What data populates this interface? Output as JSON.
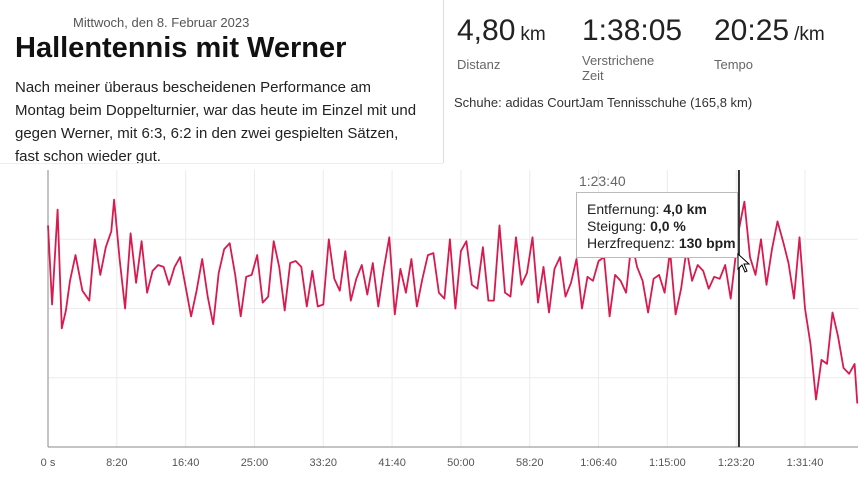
{
  "header": {
    "date": "Mittwoch, den 8. Februar 2023",
    "title": "Hallentennis mit Werner",
    "description": "Nach meiner überaus bescheidenen Performance am Montag beim Doppelturnier, war das heute im Einzel mit und gegen Werner, mit 6:3, 6:2 in den zwei gespielten Sätzen, fast schon wieder gut."
  },
  "stats": {
    "distance": {
      "value": "4,80",
      "unit": "km",
      "label": "Distanz"
    },
    "elapsed": {
      "value": "1:38:05",
      "label": "Verstrichene Zeit"
    },
    "pace": {
      "value": "20:25",
      "unit": "/km",
      "label": "Tempo"
    }
  },
  "shoes": {
    "text": "Schuhe: adidas CourtJam Tennisschuhe (165,8 km)"
  },
  "tooltip": {
    "time": "1:23:40",
    "distance_label": "Entfernung:",
    "distance_value": "4,0 km",
    "grade_label": "Steigung:",
    "grade_value": "0,0 %",
    "hr_label": "Herzfrequenz:",
    "hr_value": "130 bpm"
  },
  "colors": {
    "line": "#d81b4f",
    "cursor": "#333333"
  },
  "chart_data": {
    "type": "line",
    "title": "",
    "xlabel": "",
    "ylabel": "",
    "x_ticks": [
      "0 s",
      "8:20",
      "16:40",
      "25:00",
      "33:20",
      "41:40",
      "50:00",
      "58:20",
      "1:06:40",
      "1:15:00",
      "1:23:20",
      "1:31:40"
    ],
    "x_tick_seconds": [
      0,
      500,
      1000,
      1500,
      2000,
      2500,
      3000,
      3500,
      4000,
      4500,
      5000,
      5500
    ],
    "x_range_seconds": [
      0,
      5885
    ],
    "grid": true,
    "cursor_seconds": 5020,
    "series": [
      {
        "values": [
          [
            0,
            132
          ],
          [
            30,
            92
          ],
          [
            70,
            140
          ],
          [
            100,
            80
          ],
          [
            130,
            89
          ],
          [
            160,
            104
          ],
          [
            200,
            117
          ],
          [
            250,
            99
          ],
          [
            300,
            94
          ],
          [
            340,
            125
          ],
          [
            380,
            107
          ],
          [
            420,
            121
          ],
          [
            460,
            129
          ],
          [
            480,
            145
          ],
          [
            520,
            115
          ],
          [
            560,
            90
          ],
          [
            600,
            128
          ],
          [
            640,
            103
          ],
          [
            680,
            124
          ],
          [
            720,
            98
          ],
          [
            760,
            109
          ],
          [
            800,
            112
          ],
          [
            840,
            111
          ],
          [
            880,
            102
          ],
          [
            920,
            111
          ],
          [
            960,
            116
          ],
          [
            1000,
            101
          ],
          [
            1040,
            86
          ],
          [
            1080,
            99
          ],
          [
            1120,
            115
          ],
          [
            1160,
            96
          ],
          [
            1200,
            82
          ],
          [
            1240,
            108
          ],
          [
            1280,
            120
          ],
          [
            1320,
            123
          ],
          [
            1360,
            107
          ],
          [
            1400,
            86
          ],
          [
            1440,
            106
          ],
          [
            1480,
            107
          ],
          [
            1520,
            117
          ],
          [
            1560,
            93
          ],
          [
            1600,
            96
          ],
          [
            1640,
            124
          ],
          [
            1680,
            111
          ],
          [
            1720,
            89
          ],
          [
            1760,
            113
          ],
          [
            1800,
            114
          ],
          [
            1840,
            111
          ],
          [
            1880,
            91
          ],
          [
            1920,
            109
          ],
          [
            1960,
            91
          ],
          [
            2000,
            92
          ],
          [
            2040,
            125
          ],
          [
            2080,
            105
          ],
          [
            2120,
            99
          ],
          [
            2160,
            119
          ],
          [
            2200,
            94
          ],
          [
            2240,
            105
          ],
          [
            2280,
            112
          ],
          [
            2320,
            97
          ],
          [
            2360,
            113
          ],
          [
            2400,
            91
          ],
          [
            2440,
            110
          ],
          [
            2480,
            126
          ],
          [
            2520,
            87
          ],
          [
            2560,
            110
          ],
          [
            2600,
            98
          ],
          [
            2640,
            115
          ],
          [
            2680,
            91
          ],
          [
            2720,
            105
          ],
          [
            2760,
            117
          ],
          [
            2800,
            118
          ],
          [
            2840,
            98
          ],
          [
            2880,
            95
          ],
          [
            2920,
            125
          ],
          [
            2960,
            90
          ],
          [
            3000,
            119
          ],
          [
            3040,
            124
          ],
          [
            3080,
            102
          ],
          [
            3120,
            100
          ],
          [
            3160,
            121
          ],
          [
            3200,
            94
          ],
          [
            3240,
            94
          ],
          [
            3280,
            132
          ],
          [
            3320,
            98
          ],
          [
            3360,
            96
          ],
          [
            3400,
            126
          ],
          [
            3440,
            102
          ],
          [
            3480,
            108
          ],
          [
            3520,
            126
          ],
          [
            3560,
            93
          ],
          [
            3600,
            111
          ],
          [
            3640,
            88
          ],
          [
            3680,
            110
          ],
          [
            3720,
            116
          ],
          [
            3760,
            96
          ],
          [
            3800,
            103
          ],
          [
            3840,
            115
          ],
          [
            3880,
            90
          ],
          [
            3920,
            106
          ],
          [
            3960,
            104
          ],
          [
            4000,
            114
          ],
          [
            4040,
            116
          ],
          [
            4080,
            86
          ],
          [
            4120,
            107
          ],
          [
            4160,
            104
          ],
          [
            4200,
            98
          ],
          [
            4240,
            124
          ],
          [
            4280,
            111
          ],
          [
            4320,
            104
          ],
          [
            4360,
            88
          ],
          [
            4400,
            105
          ],
          [
            4440,
            107
          ],
          [
            4480,
            98
          ],
          [
            4520,
            119
          ],
          [
            4560,
            87
          ],
          [
            4600,
            100
          ],
          [
            4640,
            120
          ],
          [
            4680,
            104
          ],
          [
            4720,
            112
          ],
          [
            4760,
            109
          ],
          [
            4800,
            100
          ],
          [
            4840,
            106
          ],
          [
            4880,
            105
          ],
          [
            4920,
            112
          ],
          [
            4960,
            95
          ],
          [
            5000,
            119
          ],
          [
            5020,
            130
          ],
          [
            5060,
            144
          ],
          [
            5100,
            116
          ],
          [
            5140,
            107
          ],
          [
            5180,
            125
          ],
          [
            5220,
            102
          ],
          [
            5260,
            120
          ],
          [
            5300,
            134
          ],
          [
            5340,
            124
          ],
          [
            5380,
            113
          ],
          [
            5420,
            95
          ],
          [
            5460,
            126
          ],
          [
            5500,
            90
          ],
          [
            5540,
            72
          ],
          [
            5580,
            44
          ],
          [
            5620,
            64
          ],
          [
            5660,
            62
          ],
          [
            5700,
            88
          ],
          [
            5740,
            76
          ],
          [
            5780,
            60
          ],
          [
            5820,
            57
          ],
          [
            5860,
            62
          ],
          [
            5880,
            42
          ]
        ]
      }
    ],
    "ylim": [
      20,
      160
    ]
  }
}
